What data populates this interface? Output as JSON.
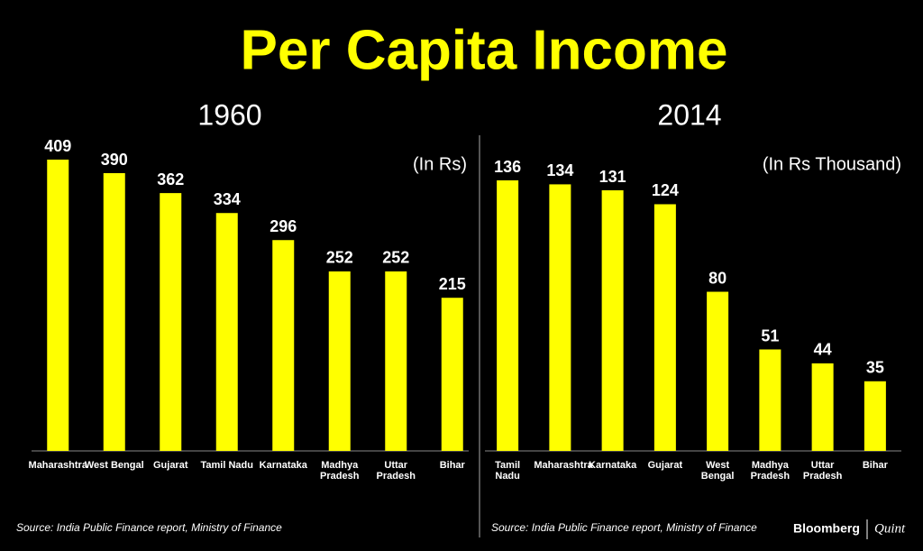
{
  "title": "Per Capita Income",
  "chart_data": [
    {
      "type": "bar",
      "title": "1960",
      "unit_label": "(In Rs)",
      "color": "#ffff00",
      "categories": [
        "Maharashtra",
        "West Bengal",
        "Gujarat",
        "Tamil Nadu",
        "Karnataka",
        "Madhya Pradesh",
        "Uttar Pradesh",
        "Bihar"
      ],
      "values": [
        409,
        390,
        362,
        334,
        296,
        252,
        252,
        215
      ],
      "source": "Source: India Public Finance report, Ministry of Finance"
    },
    {
      "type": "bar",
      "title": "2014",
      "unit_label": "(In Rs Thousand)",
      "color": "#ffff00",
      "categories": [
        "Tamil Nadu",
        "Maharashtra",
        "Karnataka",
        "Gujarat",
        "West Bengal",
        "Madhya Pradesh",
        "Uttar Pradesh",
        "Bihar"
      ],
      "values": [
        136,
        134,
        131,
        124,
        80,
        51,
        44,
        35
      ],
      "source": "Source: India Public Finance report, Ministry of Finance"
    }
  ],
  "brand": [
    "Bloomberg",
    "Quint"
  ]
}
